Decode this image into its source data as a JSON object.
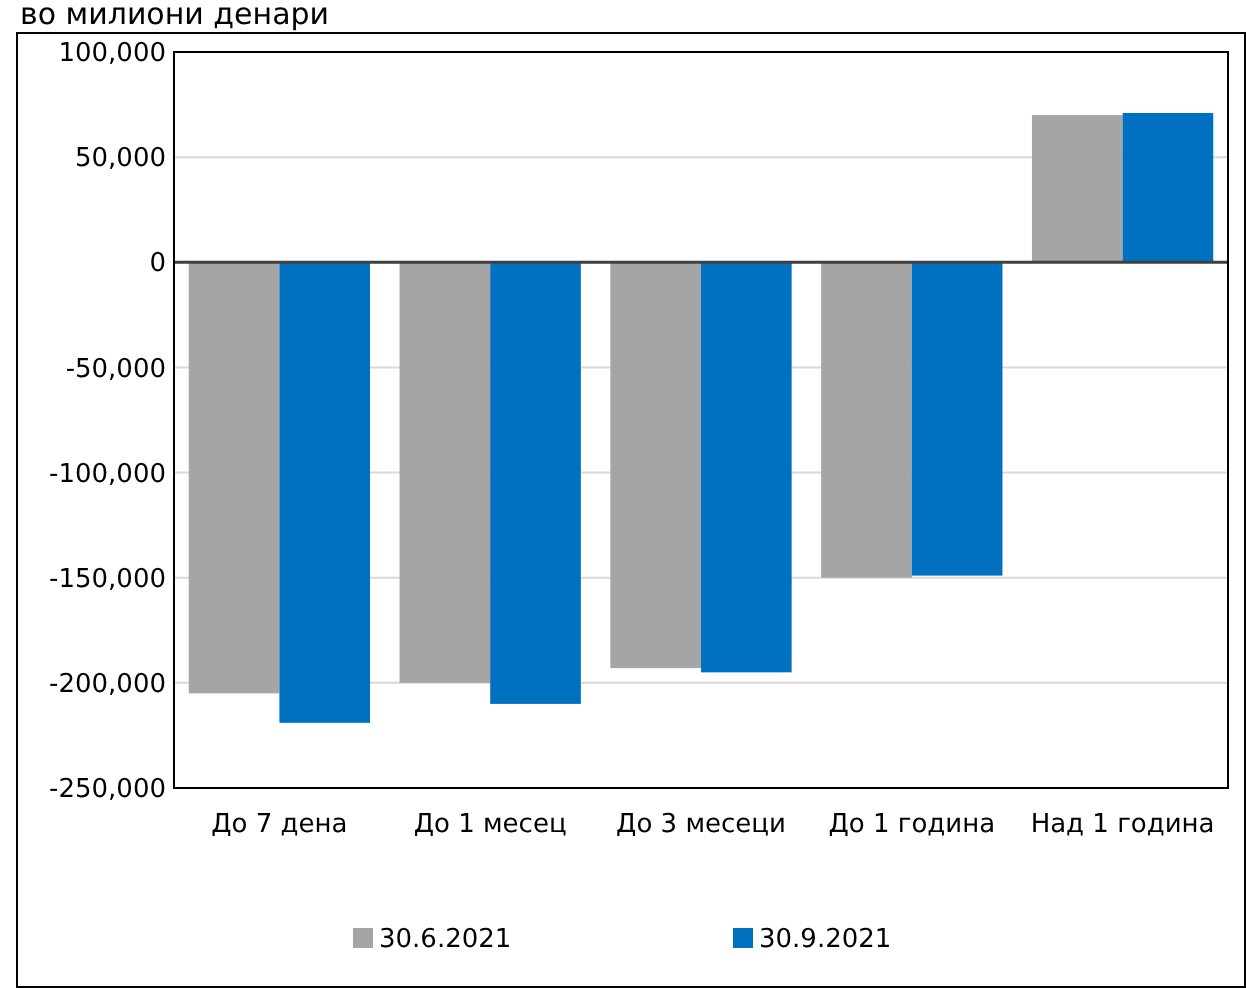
{
  "chart_data": {
    "type": "bar",
    "title": "во милиони денари",
    "categories": [
      "До 7 дена",
      "До 1 месец",
      "До 3 месеци",
      "До 1 година",
      "Над 1 година"
    ],
    "series": [
      {
        "name": "30.6.2021",
        "color": "#a5a5a5",
        "values": [
          -205000,
          -200000,
          -193000,
          -150000,
          70000
        ]
      },
      {
        "name": "30.9.2021",
        "color": "#0070c0",
        "values": [
          -219000,
          -210000,
          -195000,
          -149000,
          71000
        ]
      }
    ],
    "ylim": [
      -250000,
      100000
    ],
    "yticks": [
      {
        "value": -250000,
        "label": "-250,000"
      },
      {
        "value": -200000,
        "label": "-200,000"
      },
      {
        "value": -150000,
        "label": "-150,000"
      },
      {
        "value": -100000,
        "label": "-100,000"
      },
      {
        "value": -50000,
        "label": "-50,000"
      },
      0,
      {
        "value": 50000,
        "label": "50,000"
      },
      {
        "value": 100000,
        "label": "100,000"
      }
    ],
    "grid": "y",
    "legend": "bottom"
  }
}
